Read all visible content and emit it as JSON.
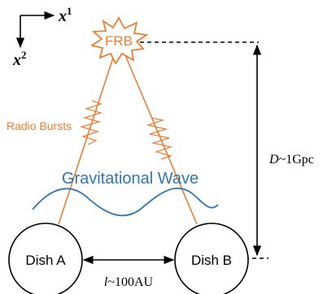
{
  "axes": {
    "x_label": "x",
    "x_superscript": "1",
    "y_label": "x",
    "y_superscript": "2"
  },
  "source": {
    "label": "FRB",
    "color": "#ED7D31"
  },
  "radio_bursts": {
    "label": "Radio Bursts",
    "color": "#ED7D31"
  },
  "gravitational_wave": {
    "label": "Gravitational Wave",
    "color": "#2E75B6"
  },
  "dishes": [
    {
      "label": "Dish A"
    },
    {
      "label": "Dish B"
    }
  ],
  "baseline": {
    "symbol": "l",
    "relation": "~100AU"
  },
  "distance": {
    "symbol": "D",
    "relation": "~1Gpc"
  },
  "colors": {
    "line": "#000000",
    "background": "#ffffff"
  }
}
